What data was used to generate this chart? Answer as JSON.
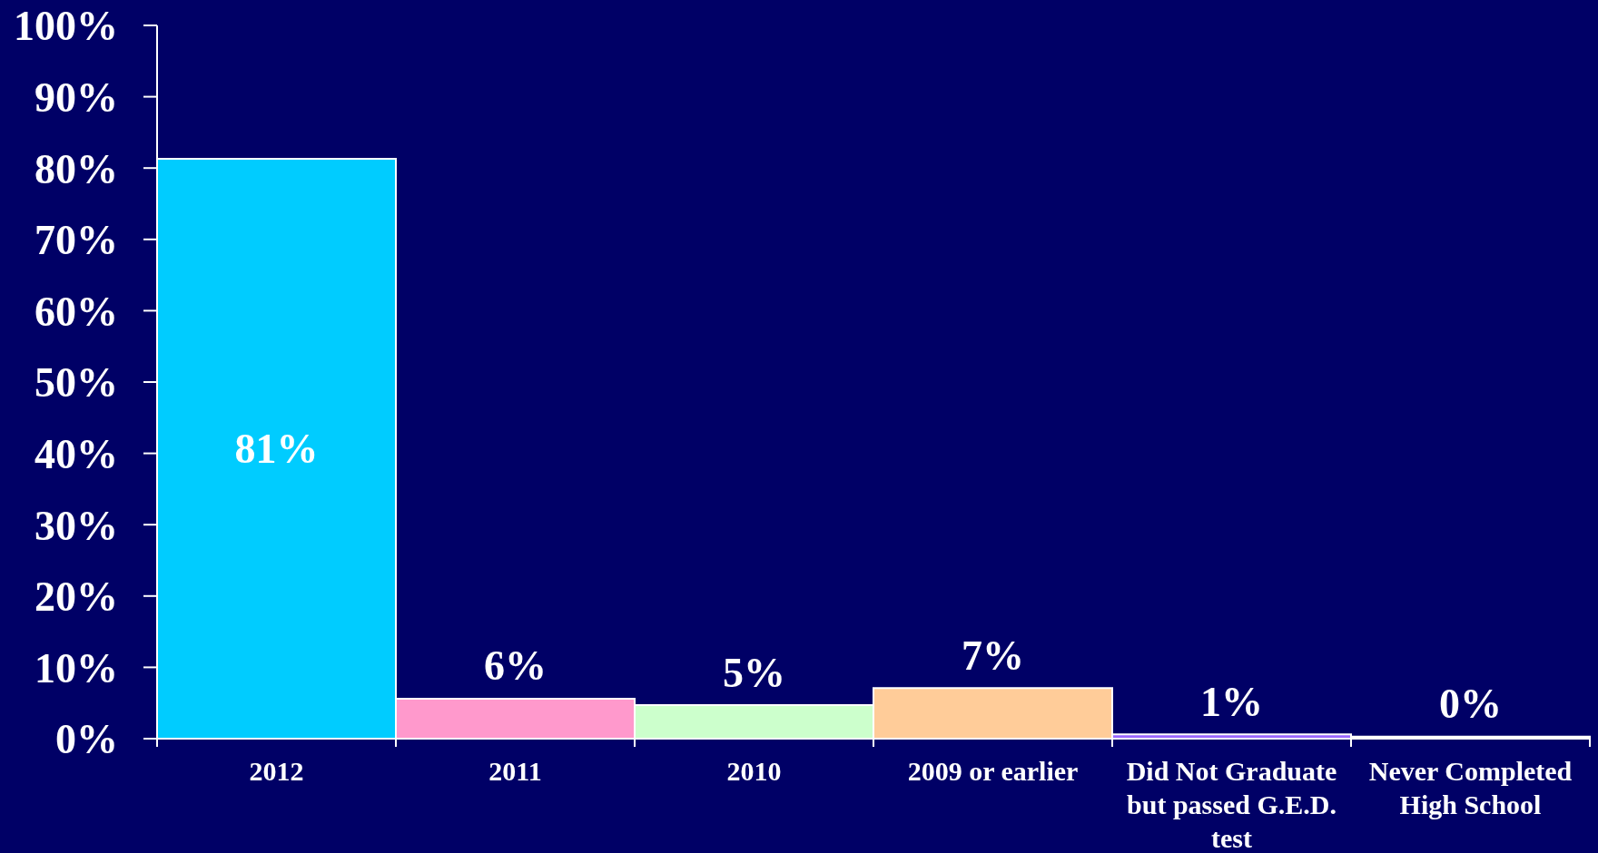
{
  "chart_data": {
    "type": "bar",
    "categories": [
      "2012",
      "2011",
      "2010",
      "2009 or earlier",
      "Did Not Graduate but passed G.E.D. test",
      "Never Completed High School"
    ],
    "values": [
      81.3,
      5.6,
      4.7,
      7.1,
      0.6,
      0.3
    ],
    "value_labels": [
      "81%",
      "6%",
      "5%",
      "7%",
      "1%",
      "0%"
    ],
    "colors": [
      "#00ccff",
      "#ff99cc",
      "#ccffcc",
      "#ffcc99",
      "#9966ff",
      "#ffffff"
    ],
    "ylim": [
      0,
      100
    ],
    "yticks": [
      {
        "value": 0,
        "label": "0%"
      },
      {
        "value": 10,
        "label": "10%"
      },
      {
        "value": 20,
        "label": "20%"
      },
      {
        "value": 30,
        "label": "30%"
      },
      {
        "value": 40,
        "label": "40%"
      },
      {
        "value": 50,
        "label": "50%"
      },
      {
        "value": 60,
        "label": "60%"
      },
      {
        "value": 70,
        "label": "70%"
      },
      {
        "value": 80,
        "label": "80%"
      },
      {
        "value": 90,
        "label": "90%"
      },
      {
        "value": 100,
        "label": "100%"
      }
    ]
  }
}
